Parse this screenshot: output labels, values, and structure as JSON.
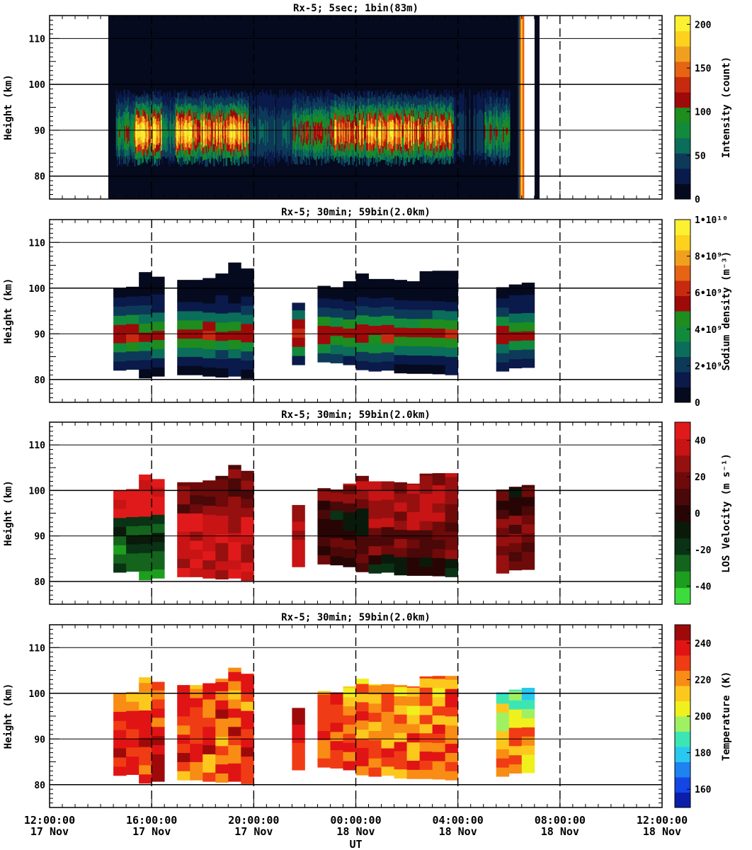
{
  "figure": {
    "xaxis_title": "UT"
  },
  "time_ticks": [
    {
      "time": "12:00:00",
      "date": "17 Nov"
    },
    {
      "time": "16:00:00",
      "date": "17 Nov"
    },
    {
      "time": "20:00:00",
      "date": "17 Nov"
    },
    {
      "time": "00:00:00",
      "date": "18 Nov"
    },
    {
      "time": "04:00:00",
      "date": "18 Nov"
    },
    {
      "time": "08:00:00",
      "date": "18 Nov"
    },
    {
      "time": "12:00:00",
      "date": "18 Nov"
    }
  ],
  "chart_data": [
    {
      "type": "heatmap",
      "title": "Rx-5;  5sec; 1bin(83m)",
      "ylabel": "Height (km)",
      "ylim": [
        75,
        115
      ],
      "xlim_hours_since_2024_11_17_12UT": [
        0,
        24
      ],
      "yticks": [
        80,
        90,
        100,
        110
      ],
      "colorbar": {
        "label": "Intensity (count)",
        "range": [
          0,
          210
        ],
        "ticks": [
          "0",
          "50",
          "100",
          "150",
          "200"
        ],
        "colors": [
          "#050a1e",
          "#0a1a4a",
          "#0e3a5a",
          "#0a6e5a",
          "#128a3c",
          "#1e8c1e",
          "#9e0a0a",
          "#c82a10",
          "#e66414",
          "#f0a01e",
          "#fcd21e",
          "#fcf032"
        ]
      },
      "segments_start_end_hours": [
        [
          2.3,
          18.6
        ],
        [
          19.0,
          19.2
        ]
      ],
      "layer_peak_height_km": 89,
      "layer_top_km": 98,
      "layer_bottom_km": 82
    },
    {
      "type": "heatmap",
      "title": "Rx-5; 30min; 59bin(2.0km)",
      "ylabel": "Height (km)",
      "ylim": [
        75,
        115
      ],
      "yticks": [
        80,
        90,
        100,
        110
      ],
      "colorbar": {
        "label": "Sodium density (m⁻³)",
        "range": [
          0,
          10000000000.0
        ],
        "ticks": [
          "0",
          "2•10⁹",
          "4•10⁹",
          "6•10⁹",
          "8•10⁹",
          "1•10¹⁰"
        ],
        "colors": [
          "#050a1e",
          "#0a1a4a",
          "#0e3a5a",
          "#0a6e5a",
          "#128a3c",
          "#1e8c1e",
          "#9e0a0a",
          "#c82a10",
          "#e66414",
          "#f0a01e",
          "#fcd21e",
          "#fcf032"
        ]
      },
      "columns_hours_start": [
        2.5,
        3.0,
        3.5,
        4.0,
        5.0,
        5.5,
        6.0,
        6.5,
        7.0,
        7.5,
        9.5,
        10.5,
        11.0,
        11.5,
        12.0,
        12.5,
        13.0,
        13.5,
        14.0,
        14.5,
        15.0,
        15.5,
        17.5,
        18.0,
        18.5
      ],
      "column_width_hours": 0.5
    },
    {
      "type": "heatmap",
      "title": "Rx-5; 30min; 59bin(2.0km)",
      "ylabel": "Height (km)",
      "ylim": [
        75,
        115
      ],
      "yticks": [
        80,
        90,
        100,
        110
      ],
      "colorbar": {
        "label": "LOS Velocity (m s⁻¹)",
        "range": [
          -50,
          50
        ],
        "ticks": [
          "-40",
          "-20",
          "0",
          "20",
          "40"
        ],
        "colors": [
          "#3cdc3c",
          "#1e9e1e",
          "#14641e",
          "#0a3214",
          "#0a1a0a",
          "#280505",
          "#4a0808",
          "#6e0a0a",
          "#961010",
          "#c81414",
          "#e01a1a"
        ]
      }
    },
    {
      "type": "heatmap",
      "title": "Rx-5; 30min; 59bin(2.0km)",
      "ylabel": "Height (km)",
      "ylim": [
        75,
        115
      ],
      "yticks": [
        80,
        90,
        100,
        110
      ],
      "colorbar": {
        "label": "Temperature (K)",
        "range": [
          150,
          250
        ],
        "ticks": [
          "160",
          "180",
          "200",
          "220",
          "240"
        ],
        "colors": [
          "#0a1eaa",
          "#1446e6",
          "#1e82f0",
          "#28c8f0",
          "#3ce6b4",
          "#a0f064",
          "#f0f01e",
          "#fcc81e",
          "#f88c14",
          "#f03c14",
          "#e01414",
          "#9e0a0a"
        ]
      }
    }
  ]
}
